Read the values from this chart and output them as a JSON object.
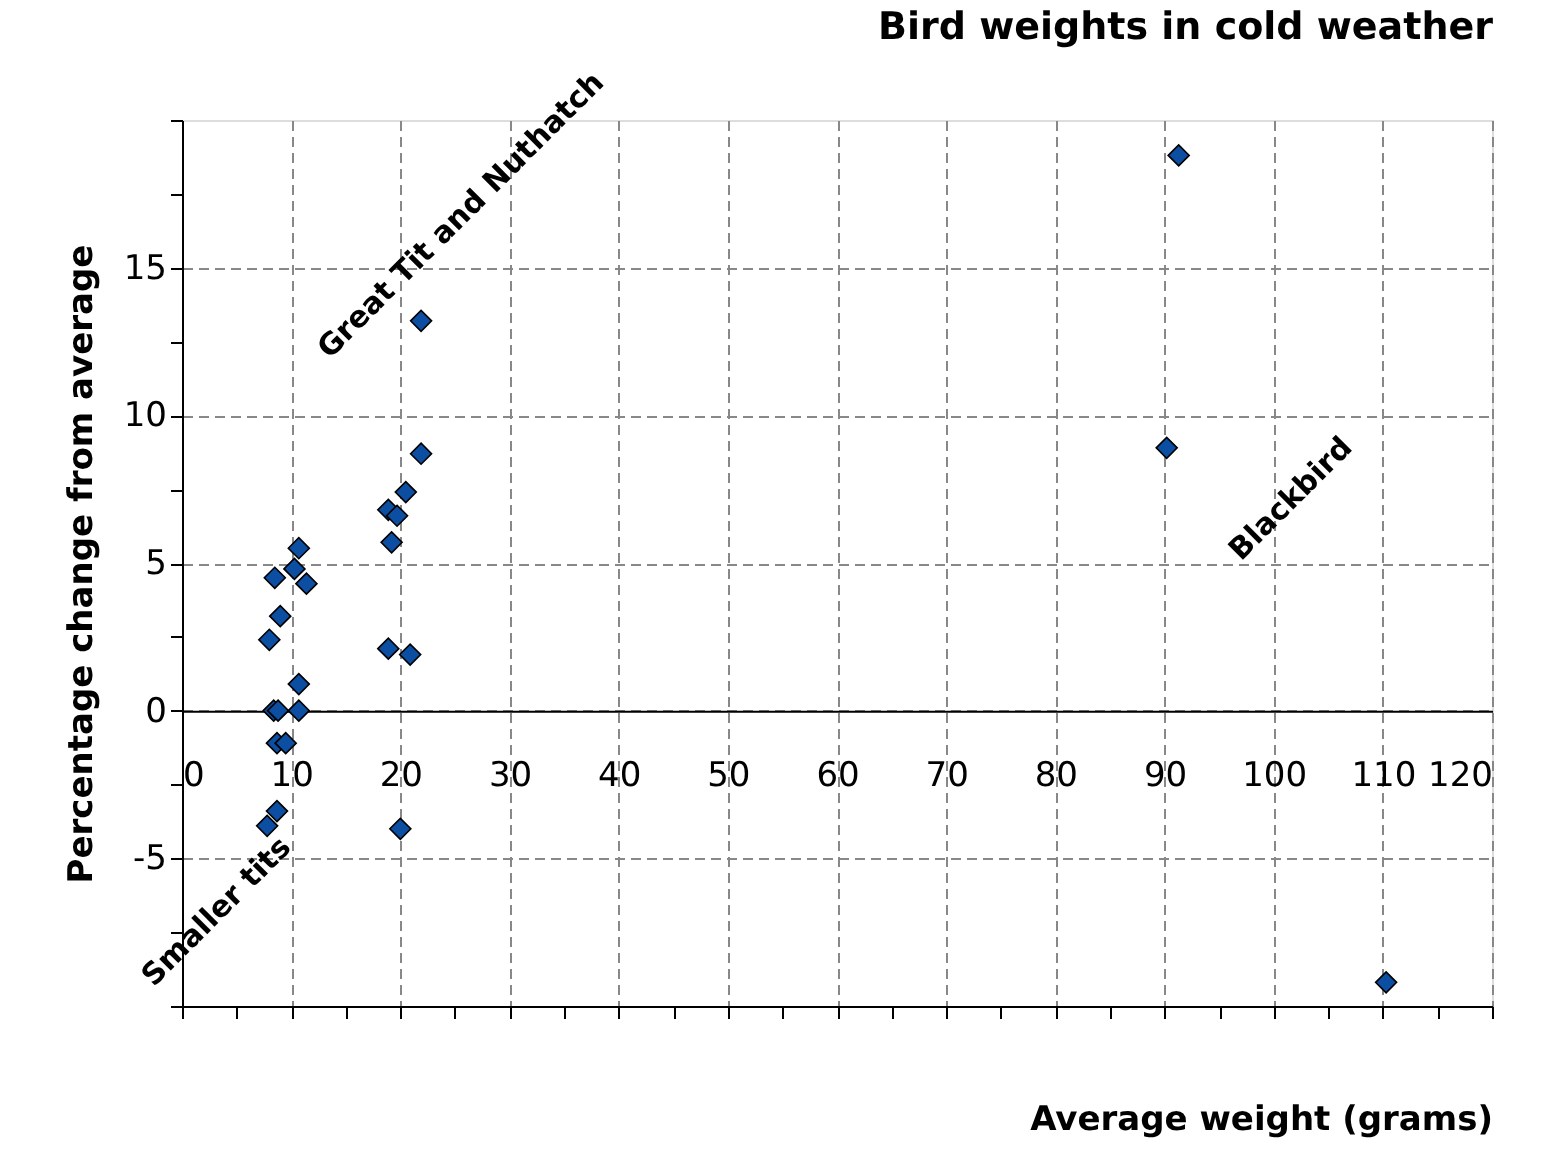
{
  "chart_data": {
    "type": "scatter",
    "title": "Bird weights in cold weather",
    "xlabel": "Average weight (grams)",
    "ylabel": "Percentage change from average",
    "x": [
      8.5,
      10.7,
      10.3,
      11.4,
      9.0,
      8.0,
      10.7,
      8.4,
      8.8,
      10.7,
      8.7,
      9.5,
      7.8,
      8.7,
      20.0,
      18.9,
      20.9,
      19.2,
      21.9,
      21.9,
      20.5,
      18.9,
      19.7,
      91.3,
      90.2,
      110.3
    ],
    "series": [
      {
        "color": "#0b4ea2",
        "values": [
          4.5,
          5.5,
          4.8,
          4.3,
          3.2,
          2.4,
          0.9,
          0,
          0,
          0,
          -1.1,
          -1.1,
          -3.9,
          -3.4,
          -4.0,
          2.1,
          1.9,
          5.7,
          13.2,
          8.7,
          7.4,
          6.8,
          6.6,
          18.8,
          8.9,
          -9.2
        ]
      }
    ],
    "xlim": [
      0,
      120
    ],
    "ylim": [
      -10,
      20
    ],
    "xticks": [
      0,
      {
        "value": 5,
        "label": null
      },
      10,
      {
        "value": 15,
        "label": null
      },
      20,
      {
        "value": 25,
        "label": null
      },
      30,
      {
        "value": 35,
        "label": null
      },
      40,
      {
        "value": 45,
        "label": null
      },
      50,
      {
        "value": 55,
        "label": null
      },
      60,
      {
        "value": 65,
        "label": null
      },
      70,
      {
        "value": 75,
        "label": null
      },
      80,
      {
        "value": 85,
        "label": null
      },
      90,
      {
        "value": 95,
        "label": null
      },
      100,
      {
        "value": 105,
        "label": null
      },
      110,
      {
        "value": 115,
        "label": null
      },
      120
    ],
    "yticks": [
      {
        "value": -10,
        "label": null
      },
      {
        "value": -7.5,
        "label": null
      },
      -5,
      {
        "value": -2.5,
        "label": null
      },
      0,
      {
        "value": 2.5,
        "label": null
      },
      5,
      {
        "value": 7.5,
        "label": null
      },
      10,
      {
        "value": 12.5,
        "label": null
      },
      15,
      {
        "value": 17.5,
        "label": null
      },
      {
        "value": 20,
        "label": null
      }
    ],
    "grid": true,
    "marker": "diamond",
    "annotations": [
      "Great Tit and Nuthatch",
      "Blackbird",
      "Smaller tits"
    ]
  }
}
